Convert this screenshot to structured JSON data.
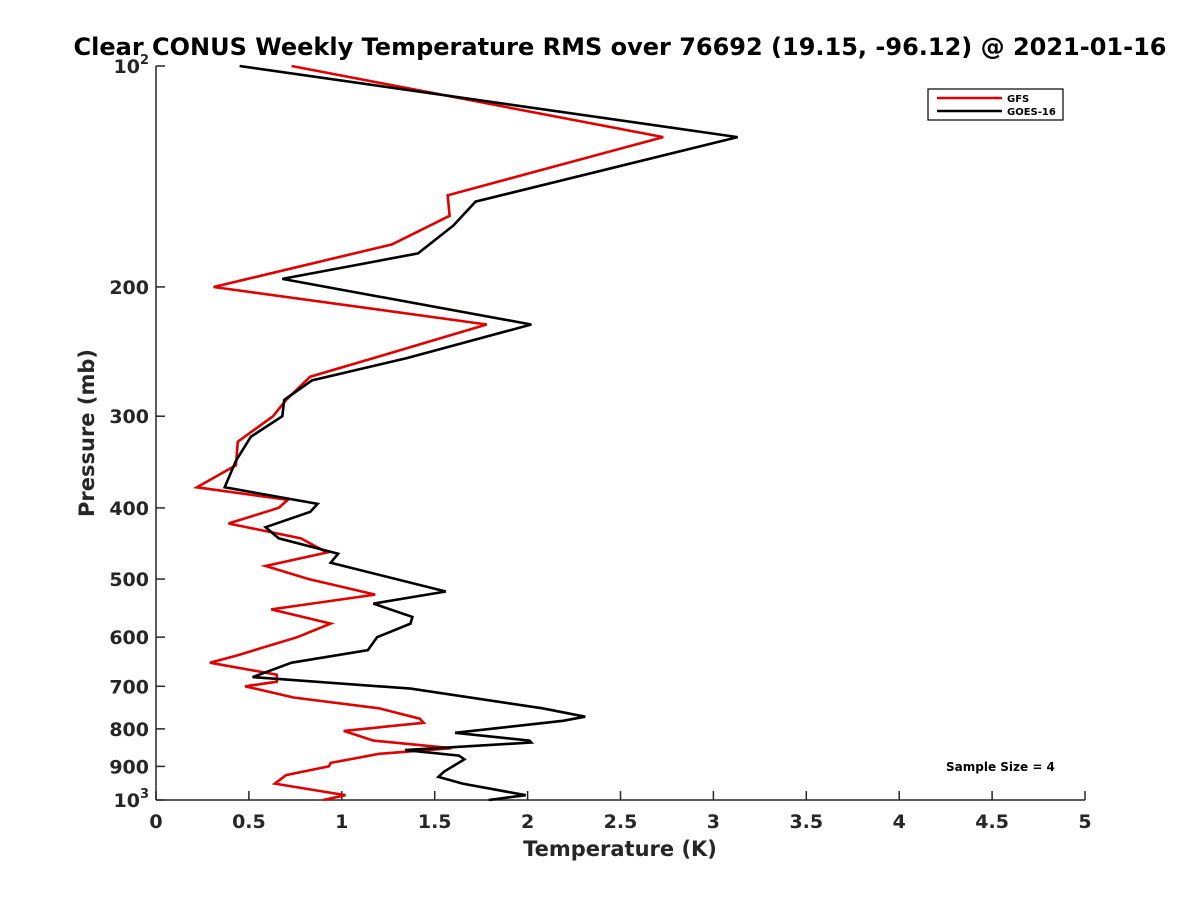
{
  "chart_data": {
    "type": "line",
    "title": "Clear CONUS Weekly Temperature RMS over 76692 (19.15, -96.12) @ 2021-01-16",
    "xlabel": "Temperature (K)",
    "ylabel": "Pressure (mb)",
    "xlim": [
      0,
      5
    ],
    "ylim": [
      100,
      1000
    ],
    "y_scale": "log",
    "y_reversed": true,
    "grid": false,
    "legend_position": "top-right",
    "x_ticks": [
      0,
      0.5,
      1,
      1.5,
      2,
      2.5,
      3,
      3.5,
      4,
      4.5,
      5
    ],
    "x_tick_labels": [
      "0",
      "0.5",
      "1",
      "1.5",
      "2",
      "2.5",
      "3",
      "3.5",
      "4",
      "4.5",
      "5"
    ],
    "y_ticks": [
      {
        "value": 100,
        "base": "10",
        "exp": "2"
      },
      {
        "value": 200,
        "label": "200"
      },
      {
        "value": 300,
        "label": "300"
      },
      {
        "value": 400,
        "label": "400"
      },
      {
        "value": 500,
        "label": "500"
      },
      {
        "value": 600,
        "label": "600"
      },
      {
        "value": 700,
        "label": "700"
      },
      {
        "value": 800,
        "label": "800"
      },
      {
        "value": 900,
        "label": "900"
      },
      {
        "value": 1000,
        "base": "10",
        "exp": "3"
      }
    ],
    "annotation": "Sample Size = 4",
    "series": [
      {
        "name": "GFS",
        "color": "#e00000",
        "points": [
          [
            0.73,
            100
          ],
          [
            2.73,
            125
          ],
          [
            1.57,
            150
          ],
          [
            1.58,
            160
          ],
          [
            1.27,
            175
          ],
          [
            0.31,
            200
          ],
          [
            1.78,
            225
          ],
          [
            1.17,
            250
          ],
          [
            0.83,
            265
          ],
          [
            0.7,
            285
          ],
          [
            0.63,
            300
          ],
          [
            0.44,
            325
          ],
          [
            0.43,
            350
          ],
          [
            0.22,
            375
          ],
          [
            0.71,
            390
          ],
          [
            0.66,
            400
          ],
          [
            0.39,
            420
          ],
          [
            0.78,
            440
          ],
          [
            0.92,
            460
          ],
          [
            0.59,
            480
          ],
          [
            0.82,
            500
          ],
          [
            1.18,
            525
          ],
          [
            0.62,
            550
          ],
          [
            0.94,
            575
          ],
          [
            0.76,
            600
          ],
          [
            0.44,
            635
          ],
          [
            0.29,
            650
          ],
          [
            0.65,
            675
          ],
          [
            0.65,
            690
          ],
          [
            0.48,
            700
          ],
          [
            0.74,
            725
          ],
          [
            1.2,
            750
          ],
          [
            1.42,
            775
          ],
          [
            1.44,
            785
          ],
          [
            1.01,
            805
          ],
          [
            1.17,
            830
          ],
          [
            1.59,
            850
          ],
          [
            1.2,
            865
          ],
          [
            0.94,
            890
          ],
          [
            0.93,
            900
          ],
          [
            0.7,
            925
          ],
          [
            0.64,
            950
          ],
          [
            0.91,
            975
          ],
          [
            1.02,
            985
          ],
          [
            0.9,
            1000
          ]
        ]
      },
      {
        "name": "GOES-16",
        "color": "#000000",
        "points": [
          [
            0.45,
            100
          ],
          [
            3.13,
            125
          ],
          [
            1.72,
            153
          ],
          [
            1.6,
            165
          ],
          [
            1.41,
            180
          ],
          [
            0.68,
            195
          ],
          [
            2.02,
            225
          ],
          [
            1.35,
            250
          ],
          [
            0.84,
            268
          ],
          [
            0.69,
            285
          ],
          [
            0.68,
            300
          ],
          [
            0.51,
            320
          ],
          [
            0.43,
            345
          ],
          [
            0.37,
            375
          ],
          [
            0.87,
            395
          ],
          [
            0.83,
            405
          ],
          [
            0.59,
            425
          ],
          [
            0.66,
            440
          ],
          [
            0.98,
            462
          ],
          [
            0.94,
            475
          ],
          [
            1.56,
            520
          ],
          [
            1.17,
            540
          ],
          [
            1.38,
            563
          ],
          [
            1.37,
            575
          ],
          [
            1.19,
            600
          ],
          [
            1.14,
            625
          ],
          [
            0.73,
            650
          ],
          [
            0.52,
            680
          ],
          [
            1.37,
            705
          ],
          [
            2.08,
            750
          ],
          [
            2.31,
            770
          ],
          [
            2.19,
            780
          ],
          [
            1.61,
            810
          ],
          [
            2.01,
            830
          ],
          [
            2.02,
            835
          ],
          [
            1.34,
            855
          ],
          [
            1.63,
            870
          ],
          [
            1.66,
            880
          ],
          [
            1.55,
            915
          ],
          [
            1.52,
            930
          ],
          [
            1.65,
            950
          ],
          [
            1.99,
            985
          ],
          [
            1.79,
            1000
          ]
        ]
      }
    ]
  }
}
